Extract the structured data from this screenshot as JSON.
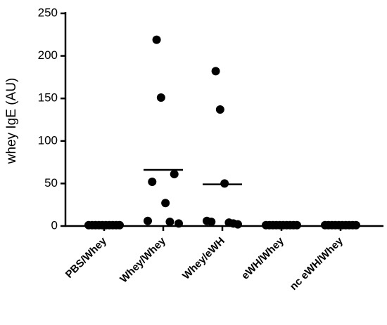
{
  "chart_data": {
    "type": "dotplot",
    "y_label": "whey IgE (AU)",
    "categories": [
      "PBS/Whey",
      "Whey/Whey",
      "Whey/eWH",
      "eWH/Whey",
      "nc eWH/Whey"
    ],
    "values": [
      [
        1,
        1,
        1,
        1,
        1,
        1,
        1,
        1,
        1,
        1
      ],
      [
        6,
        52,
        219,
        151,
        27,
        5,
        61,
        3
      ],
      [
        6,
        5,
        182,
        137,
        50,
        4,
        3,
        2
      ],
      [
        1,
        1,
        1,
        1,
        1,
        1,
        1,
        1,
        1,
        1
      ],
      [
        1,
        1,
        1,
        1,
        1,
        1,
        1,
        1,
        1,
        1
      ]
    ],
    "means": [
      1,
      66,
      49,
      1,
      1
    ],
    "color": "#000000",
    "ylim": [
      0,
      250
    ],
    "yticks": [
      0,
      50,
      100,
      150,
      200,
      250
    ]
  }
}
